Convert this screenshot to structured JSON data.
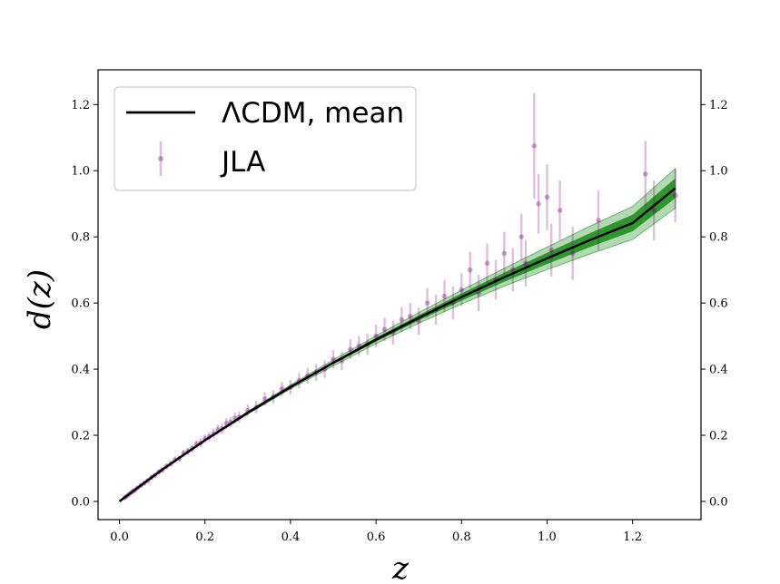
{
  "chart_data": {
    "type": "scatter",
    "xlabel": "z",
    "ylabel": "d(z)",
    "xlim": [
      -0.05,
      1.36
    ],
    "ylim": [
      -0.055,
      1.305
    ],
    "xticks": [
      0.0,
      0.2,
      0.4,
      0.6,
      0.8,
      1.0,
      1.2
    ],
    "xtick_labels": [
      "0.0",
      "0.2",
      "0.4",
      "0.6",
      "0.8",
      "1.0",
      "1.2"
    ],
    "yticks": [
      0.0,
      0.2,
      0.4,
      0.6,
      0.8,
      1.0,
      1.2
    ],
    "ytick_labels": [
      "0.0",
      "0.2",
      "0.4",
      "0.6",
      "0.8",
      "1.0",
      "1.2"
    ],
    "right_axis_ticks": true,
    "grid": false,
    "legend_position": "top-left",
    "legend": [
      "ΛCDM, mean",
      "JLA"
    ],
    "colors": {
      "mean_line": "#000000",
      "band": "#008000",
      "points": "#800080"
    },
    "series": [
      {
        "name": "ΛCDM, mean",
        "kind": "line",
        "x": [
          0.0,
          0.1,
          0.2,
          0.3,
          0.4,
          0.5,
          0.6,
          0.7,
          0.8,
          0.9,
          1.0,
          1.1,
          1.2,
          1.3
        ],
        "y": [
          0.0,
          0.096,
          0.185,
          0.268,
          0.346,
          0.419,
          0.489,
          0.555,
          0.618,
          0.678,
          0.735,
          0.79,
          0.842,
          0.947
        ],
        "band_inner_halfwidth": [
          0.0,
          0.0005,
          0.001,
          0.002,
          0.003,
          0.004,
          0.006,
          0.008,
          0.011,
          0.014,
          0.017,
          0.021,
          0.025,
          0.03
        ],
        "band_outer_halfwidth": [
          0.0,
          0.001,
          0.002,
          0.004,
          0.006,
          0.009,
          0.012,
          0.016,
          0.021,
          0.027,
          0.034,
          0.042,
          0.05,
          0.06
        ]
      },
      {
        "name": "JLA",
        "kind": "errorbar_scatter",
        "points": [
          {
            "x": 0.012,
            "y": 0.011,
            "e": 0.004
          },
          {
            "x": 0.016,
            "y": 0.015,
            "e": 0.004
          },
          {
            "x": 0.021,
            "y": 0.02,
            "e": 0.004
          },
          {
            "x": 0.026,
            "y": 0.025,
            "e": 0.004
          },
          {
            "x": 0.031,
            "y": 0.03,
            "e": 0.005
          },
          {
            "x": 0.036,
            "y": 0.034,
            "e": 0.005
          },
          {
            "x": 0.042,
            "y": 0.041,
            "e": 0.005
          },
          {
            "x": 0.05,
            "y": 0.048,
            "e": 0.006
          },
          {
            "x": 0.058,
            "y": 0.055,
            "e": 0.006
          },
          {
            "x": 0.066,
            "y": 0.063,
            "e": 0.006
          },
          {
            "x": 0.075,
            "y": 0.073,
            "e": 0.007
          },
          {
            "x": 0.083,
            "y": 0.079,
            "e": 0.007
          },
          {
            "x": 0.092,
            "y": 0.089,
            "e": 0.008
          },
          {
            "x": 0.1,
            "y": 0.095,
            "e": 0.008
          },
          {
            "x": 0.11,
            "y": 0.106,
            "e": 0.009
          },
          {
            "x": 0.12,
            "y": 0.114,
            "e": 0.009
          },
          {
            "x": 0.13,
            "y": 0.126,
            "e": 0.01
          },
          {
            "x": 0.14,
            "y": 0.13,
            "e": 0.01
          },
          {
            "x": 0.15,
            "y": 0.145,
            "e": 0.011
          },
          {
            "x": 0.16,
            "y": 0.152,
            "e": 0.011
          },
          {
            "x": 0.17,
            "y": 0.16,
            "e": 0.012
          },
          {
            "x": 0.18,
            "y": 0.173,
            "e": 0.012
          },
          {
            "x": 0.19,
            "y": 0.177,
            "e": 0.013
          },
          {
            "x": 0.2,
            "y": 0.19,
            "e": 0.013
          },
          {
            "x": 0.21,
            "y": 0.196,
            "e": 0.014
          },
          {
            "x": 0.22,
            "y": 0.205,
            "e": 0.014
          },
          {
            "x": 0.23,
            "y": 0.217,
            "e": 0.015
          },
          {
            "x": 0.24,
            "y": 0.22,
            "e": 0.015
          },
          {
            "x": 0.25,
            "y": 0.236,
            "e": 0.016
          },
          {
            "x": 0.26,
            "y": 0.24,
            "e": 0.016
          },
          {
            "x": 0.27,
            "y": 0.252,
            "e": 0.017
          },
          {
            "x": 0.28,
            "y": 0.255,
            "e": 0.017
          },
          {
            "x": 0.3,
            "y": 0.275,
            "e": 0.018
          },
          {
            "x": 0.32,
            "y": 0.285,
            "e": 0.019
          },
          {
            "x": 0.34,
            "y": 0.31,
            "e": 0.02
          },
          {
            "x": 0.36,
            "y": 0.317,
            "e": 0.02
          },
          {
            "x": 0.38,
            "y": 0.34,
            "e": 0.021
          },
          {
            "x": 0.4,
            "y": 0.345,
            "e": 0.022
          },
          {
            "x": 0.42,
            "y": 0.365,
            "e": 0.023
          },
          {
            "x": 0.44,
            "y": 0.38,
            "e": 0.024
          },
          {
            "x": 0.46,
            "y": 0.39,
            "e": 0.025
          },
          {
            "x": 0.48,
            "y": 0.4,
            "e": 0.026
          },
          {
            "x": 0.5,
            "y": 0.43,
            "e": 0.027
          },
          {
            "x": 0.52,
            "y": 0.425,
            "e": 0.028
          },
          {
            "x": 0.54,
            "y": 0.46,
            "e": 0.03
          },
          {
            "x": 0.56,
            "y": 0.47,
            "e": 0.03
          },
          {
            "x": 0.58,
            "y": 0.475,
            "e": 0.032
          },
          {
            "x": 0.6,
            "y": 0.5,
            "e": 0.034
          },
          {
            "x": 0.62,
            "y": 0.52,
            "e": 0.035
          },
          {
            "x": 0.64,
            "y": 0.51,
            "e": 0.036
          },
          {
            "x": 0.66,
            "y": 0.55,
            "e": 0.038
          },
          {
            "x": 0.68,
            "y": 0.56,
            "e": 0.04
          },
          {
            "x": 0.7,
            "y": 0.545,
            "e": 0.042
          },
          {
            "x": 0.72,
            "y": 0.6,
            "e": 0.045
          },
          {
            "x": 0.74,
            "y": 0.58,
            "e": 0.046
          },
          {
            "x": 0.76,
            "y": 0.62,
            "e": 0.048
          },
          {
            "x": 0.78,
            "y": 0.6,
            "e": 0.05
          },
          {
            "x": 0.8,
            "y": 0.64,
            "e": 0.05
          },
          {
            "x": 0.82,
            "y": 0.7,
            "e": 0.055
          },
          {
            "x": 0.84,
            "y": 0.63,
            "e": 0.055
          },
          {
            "x": 0.86,
            "y": 0.72,
            "e": 0.06
          },
          {
            "x": 0.88,
            "y": 0.67,
            "e": 0.06
          },
          {
            "x": 0.9,
            "y": 0.75,
            "e": 0.065
          },
          {
            "x": 0.92,
            "y": 0.7,
            "e": 0.065
          },
          {
            "x": 0.94,
            "y": 0.8,
            "e": 0.07
          },
          {
            "x": 0.95,
            "y": 0.72,
            "e": 0.07
          },
          {
            "x": 0.97,
            "y": 1.075,
            "e": 0.16
          },
          {
            "x": 0.98,
            "y": 0.9,
            "e": 0.09
          },
          {
            "x": 1.0,
            "y": 0.92,
            "e": 0.1
          },
          {
            "x": 1.01,
            "y": 0.76,
            "e": 0.08
          },
          {
            "x": 1.03,
            "y": 0.88,
            "e": 0.09
          },
          {
            "x": 1.06,
            "y": 0.75,
            "e": 0.08
          },
          {
            "x": 1.12,
            "y": 0.85,
            "e": 0.09
          },
          {
            "x": 1.23,
            "y": 0.99,
            "e": 0.1
          },
          {
            "x": 1.25,
            "y": 0.88,
            "e": 0.09
          },
          {
            "x": 1.3,
            "y": 0.925,
            "e": 0.08
          }
        ]
      }
    ]
  }
}
